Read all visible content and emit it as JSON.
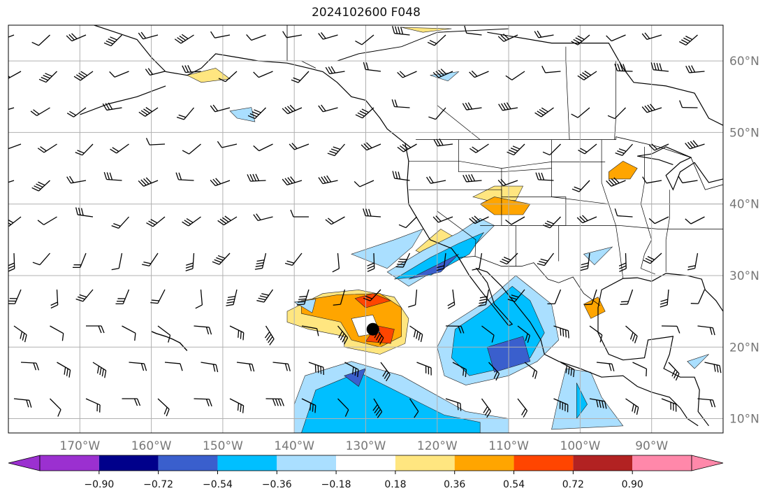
{
  "title": "2024102600 F048",
  "map": {
    "lon_range": [
      -180,
      -80
    ],
    "lat_range": [
      8,
      65
    ],
    "lon_ticks": [
      {
        "value": -170,
        "label": "170°W"
      },
      {
        "value": -160,
        "label": "160°W"
      },
      {
        "value": -150,
        "label": "150°W"
      },
      {
        "value": -140,
        "label": "140°W"
      },
      {
        "value": -130,
        "label": "130°W"
      },
      {
        "value": -120,
        "label": "120°W"
      },
      {
        "value": -110,
        "label": "110°W"
      },
      {
        "value": -100,
        "label": "100°W"
      },
      {
        "value": -90,
        "label": "90°W"
      }
    ],
    "lat_ticks": [
      {
        "value": 10,
        "label": "10°N"
      },
      {
        "value": 20,
        "label": "20°N"
      },
      {
        "value": 30,
        "label": "30°N"
      },
      {
        "value": 40,
        "label": "40°N"
      },
      {
        "value": 50,
        "label": "50°N"
      },
      {
        "value": 60,
        "label": "60°N"
      }
    ],
    "grid": true,
    "storm_center": {
      "lon": -129,
      "lat": 22.5
    }
  },
  "colorbar": {
    "levels": [
      -0.9,
      -0.72,
      -0.54,
      -0.36,
      -0.18,
      0.18,
      0.36,
      0.54,
      0.72,
      0.9
    ],
    "tick_labels": [
      "−0.90",
      "−0.72",
      "−0.54",
      "−0.36",
      "−0.18",
      "0.18",
      "0.36",
      "0.54",
      "0.72",
      "0.90"
    ],
    "colors": [
      "#9b30d0",
      "#00008b",
      "#3a5fcd",
      "#00bfff",
      "#aadfff",
      "#ffffff",
      "#ffe680",
      "#ffa500",
      "#ff4500",
      "#b22222",
      "#ff88aa"
    ],
    "extend": "both"
  },
  "colors": {
    "coastline": "#000000",
    "grid": "#b0b0b0",
    "land": "#ffffff"
  }
}
